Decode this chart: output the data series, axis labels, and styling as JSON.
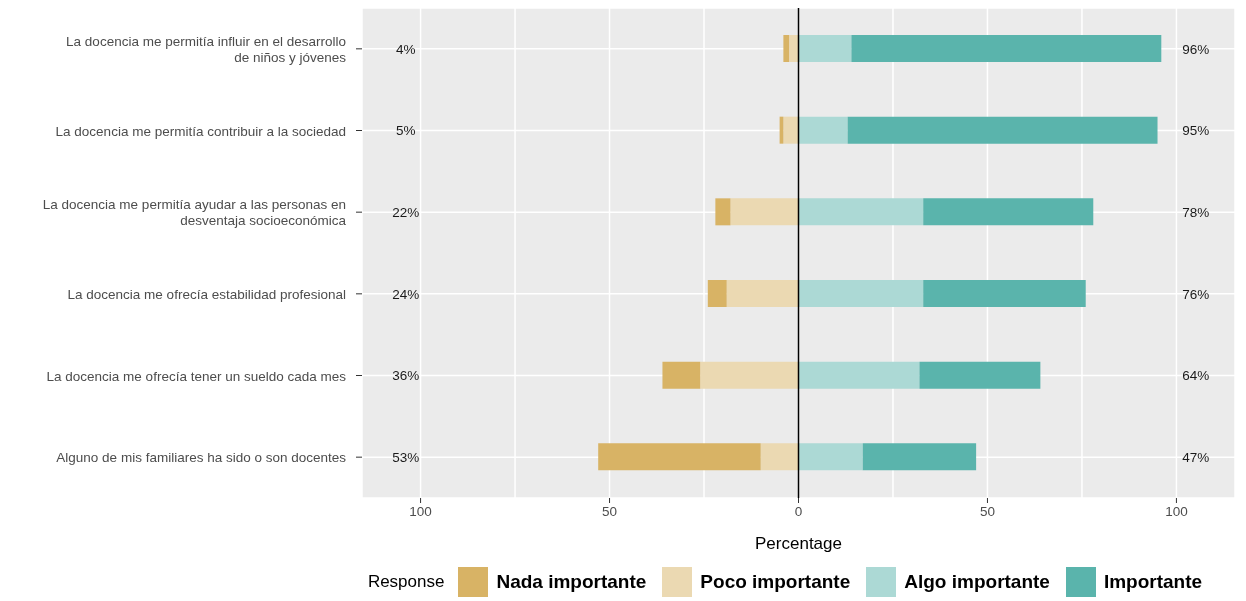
{
  "chart_data": {
    "type": "bar",
    "orientation": "horizontal",
    "stacked": true,
    "categories": [
      "La docencia me permitía influir en el desarrollo\nde niños y jóvenes",
      "La docencia me permitía contribuir a la sociedad",
      "La docencia me permitía ayudar a las personas en\ndesventaja socioeconómica",
      "La docencia me ofrecía estabilidad profesional",
      "La docencia me ofrecía tener un sueldo cada mes",
      "Alguno de mis familiares ha sido o son docentes"
    ],
    "series": [
      {
        "name": "Poco importante",
        "color": "#ebd9b2",
        "values": [
          -2.5,
          -4,
          -18,
          -19,
          -26,
          -10
        ]
      },
      {
        "name": "Nada importante",
        "color": "#d8b365",
        "values": [
          -1.5,
          -1,
          -4,
          -5,
          -10,
          -43
        ]
      },
      {
        "name": "Algo importante",
        "color": "#acd9d5",
        "values": [
          14,
          13,
          33,
          33,
          32,
          17
        ]
      },
      {
        "name": "Importante",
        "color": "#5ab4ac",
        "values": [
          82,
          82,
          45,
          43,
          32,
          30
        ]
      }
    ],
    "xlim": [
      -115.5,
      115.5
    ],
    "xticks": [
      {
        "value": -100,
        "label": "100"
      },
      {
        "value": -75,
        "label": null
      },
      {
        "value": -50,
        "label": "50"
      },
      {
        "value": -25,
        "label": null
      },
      0,
      {
        "value": 25,
        "label": null
      },
      50,
      {
        "value": 75,
        "label": null
      },
      100
    ],
    "xlabel": "Percentage",
    "legend_title": "Response",
    "legend": "bottom",
    "grid": true,
    "ref_lines": [
      {
        "axis": "x",
        "value": 0,
        "color": "#000000"
      }
    ],
    "annotations": [
      "4%",
      "96%",
      "5%",
      "95%",
      "22%",
      "78%",
      "24%",
      "76%",
      "36%",
      "64%",
      "53%",
      "47%"
    ]
  }
}
